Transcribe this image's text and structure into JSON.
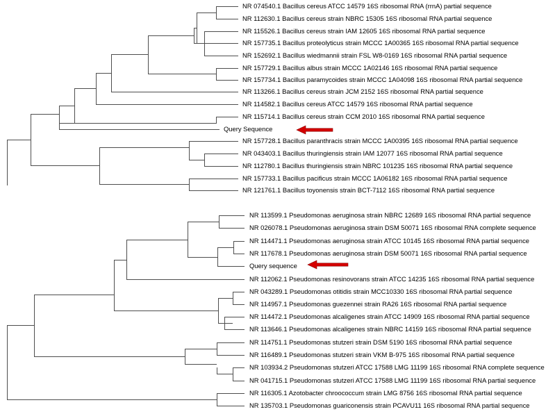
{
  "trees": [
    {
      "name": "bacillus-tree",
      "leaves": [
        "NR 074540.1 Bacillus cereus ATCC 14579 16S ribosomal RNA (rrnA) partial sequence",
        "NR 112630.1 Bacillus cereus strain NBRC 15305 16S ribosomal RNA partial sequence",
        "NR 115526.1 Bacillus cereus strain IAM 12605 16S ribosomal RNA partial sequence",
        "NR 157735.1 Bacillus proteolyticus strain MCCC 1A00365 16S ribosomal RNA partial sequence",
        "NR 152692.1 Bacillus wiedmannii strain FSL W8-0169 16S ribosomal RNA partial sequence",
        "NR 157729.1 Bacillus albus strain MCCC 1A02146 16S ribosomal RNA partial sequence",
        "NR 157734.1 Bacillus paramycoides strain MCCC 1A04098 16S ribosomal RNA partial sequence",
        "NR 113266.1 Bacillus cereus strain JCM 2152 16S ribosomal RNA partial sequence",
        "NR 114582.1 Bacillus cereus ATCC 14579 16S ribosomal RNA partial sequence",
        "NR 115714.1 Bacillus cereus strain CCM 2010 16S ribosomal RNA partial sequence",
        "Query Sequence",
        "NR 157728.1 Bacillus paranthracis strain MCCC 1A00395 16S ribosomal RNA partial sequence",
        "NR 043403.1 Bacillus thuringiensis strain IAM 12077 16S ribosomal RNA partial sequence",
        "NR 112780.1 Bacillus thuringiensis strain NBRC 101235 16S ribosomal RNA partial sequence",
        "NR 157733.1 Bacillus pacificus strain MCCC 1A06182 16S ribosomal RNA partial sequence",
        "NR 121761.1 Bacillus toyonensis strain BCT-7112 16S ribosomal RNA partial sequence"
      ]
    },
    {
      "name": "pseudomonas-tree",
      "leaves": [
        "NR 113599.1 Pseudomonas aeruginosa strain NBRC 12689 16S ribosomal RNA partial sequence",
        "NR 026078.1 Pseudomonas aeruginosa strain DSM 50071 16S ribosomal RNA complete sequence",
        "NR 114471.1 Pseudomonas aeruginosa strain ATCC 10145 16S ribosomal RNA partial sequence",
        "NR 117678.1 Pseudomonas aeruginosa strain DSM 50071 16S ribosomal RNA partial sequence",
        "Query sequence",
        "NR 112062.1 Pseudomonas resinovorans strain ATCC 14235 16S ribosomal RNA partial sequence",
        "NR 043289.1 Pseudomonas otitidis strain MCC10330 16S ribosomal RNA partial sequence",
        "NR 114957.1 Pseudomonas guezennei strain RA26 16S ribosomal RNA partial sequence",
        "NR 114472.1 Pseudomonas alcaligenes strain ATCC 14909 16S ribosomal RNA partial sequence",
        "NR 113646.1 Pseudomonas alcaligenes strain NBRC 14159 16S ribosomal RNA partial sequence",
        "NR 114751.1 Pseudomonas stutzeri strain DSM 5190 16S ribosomal RNA partial sequence",
        "NR 116489.1 Pseudomonas stutzeri strain VKM B-975 16S ribosomal RNA partial sequence",
        "NR 103934.2 Pseudomonas stutzeri ATCC 17588 LMG 11199 16S ribosomal RNA complete sequence",
        "NR 041715.1 Pseudomonas stutzeri ATCC 17588 LMG 11199 16S ribosomal RNA partial sequence",
        "NR 116305.1 Azotobacter chroococcum strain LMG 8756 16S ribosomal RNA partial sequence",
        "NR 135703.1 Pseudomonas guariconensis strain PCAVU11 16S ribosomal RNA partial sequence"
      ]
    }
  ],
  "colors": {
    "branch": "#4d4d4d",
    "label": "#000000",
    "arrow": "#d40000"
  },
  "icons": {
    "query-pointer": "red-left-arrow-icon"
  }
}
